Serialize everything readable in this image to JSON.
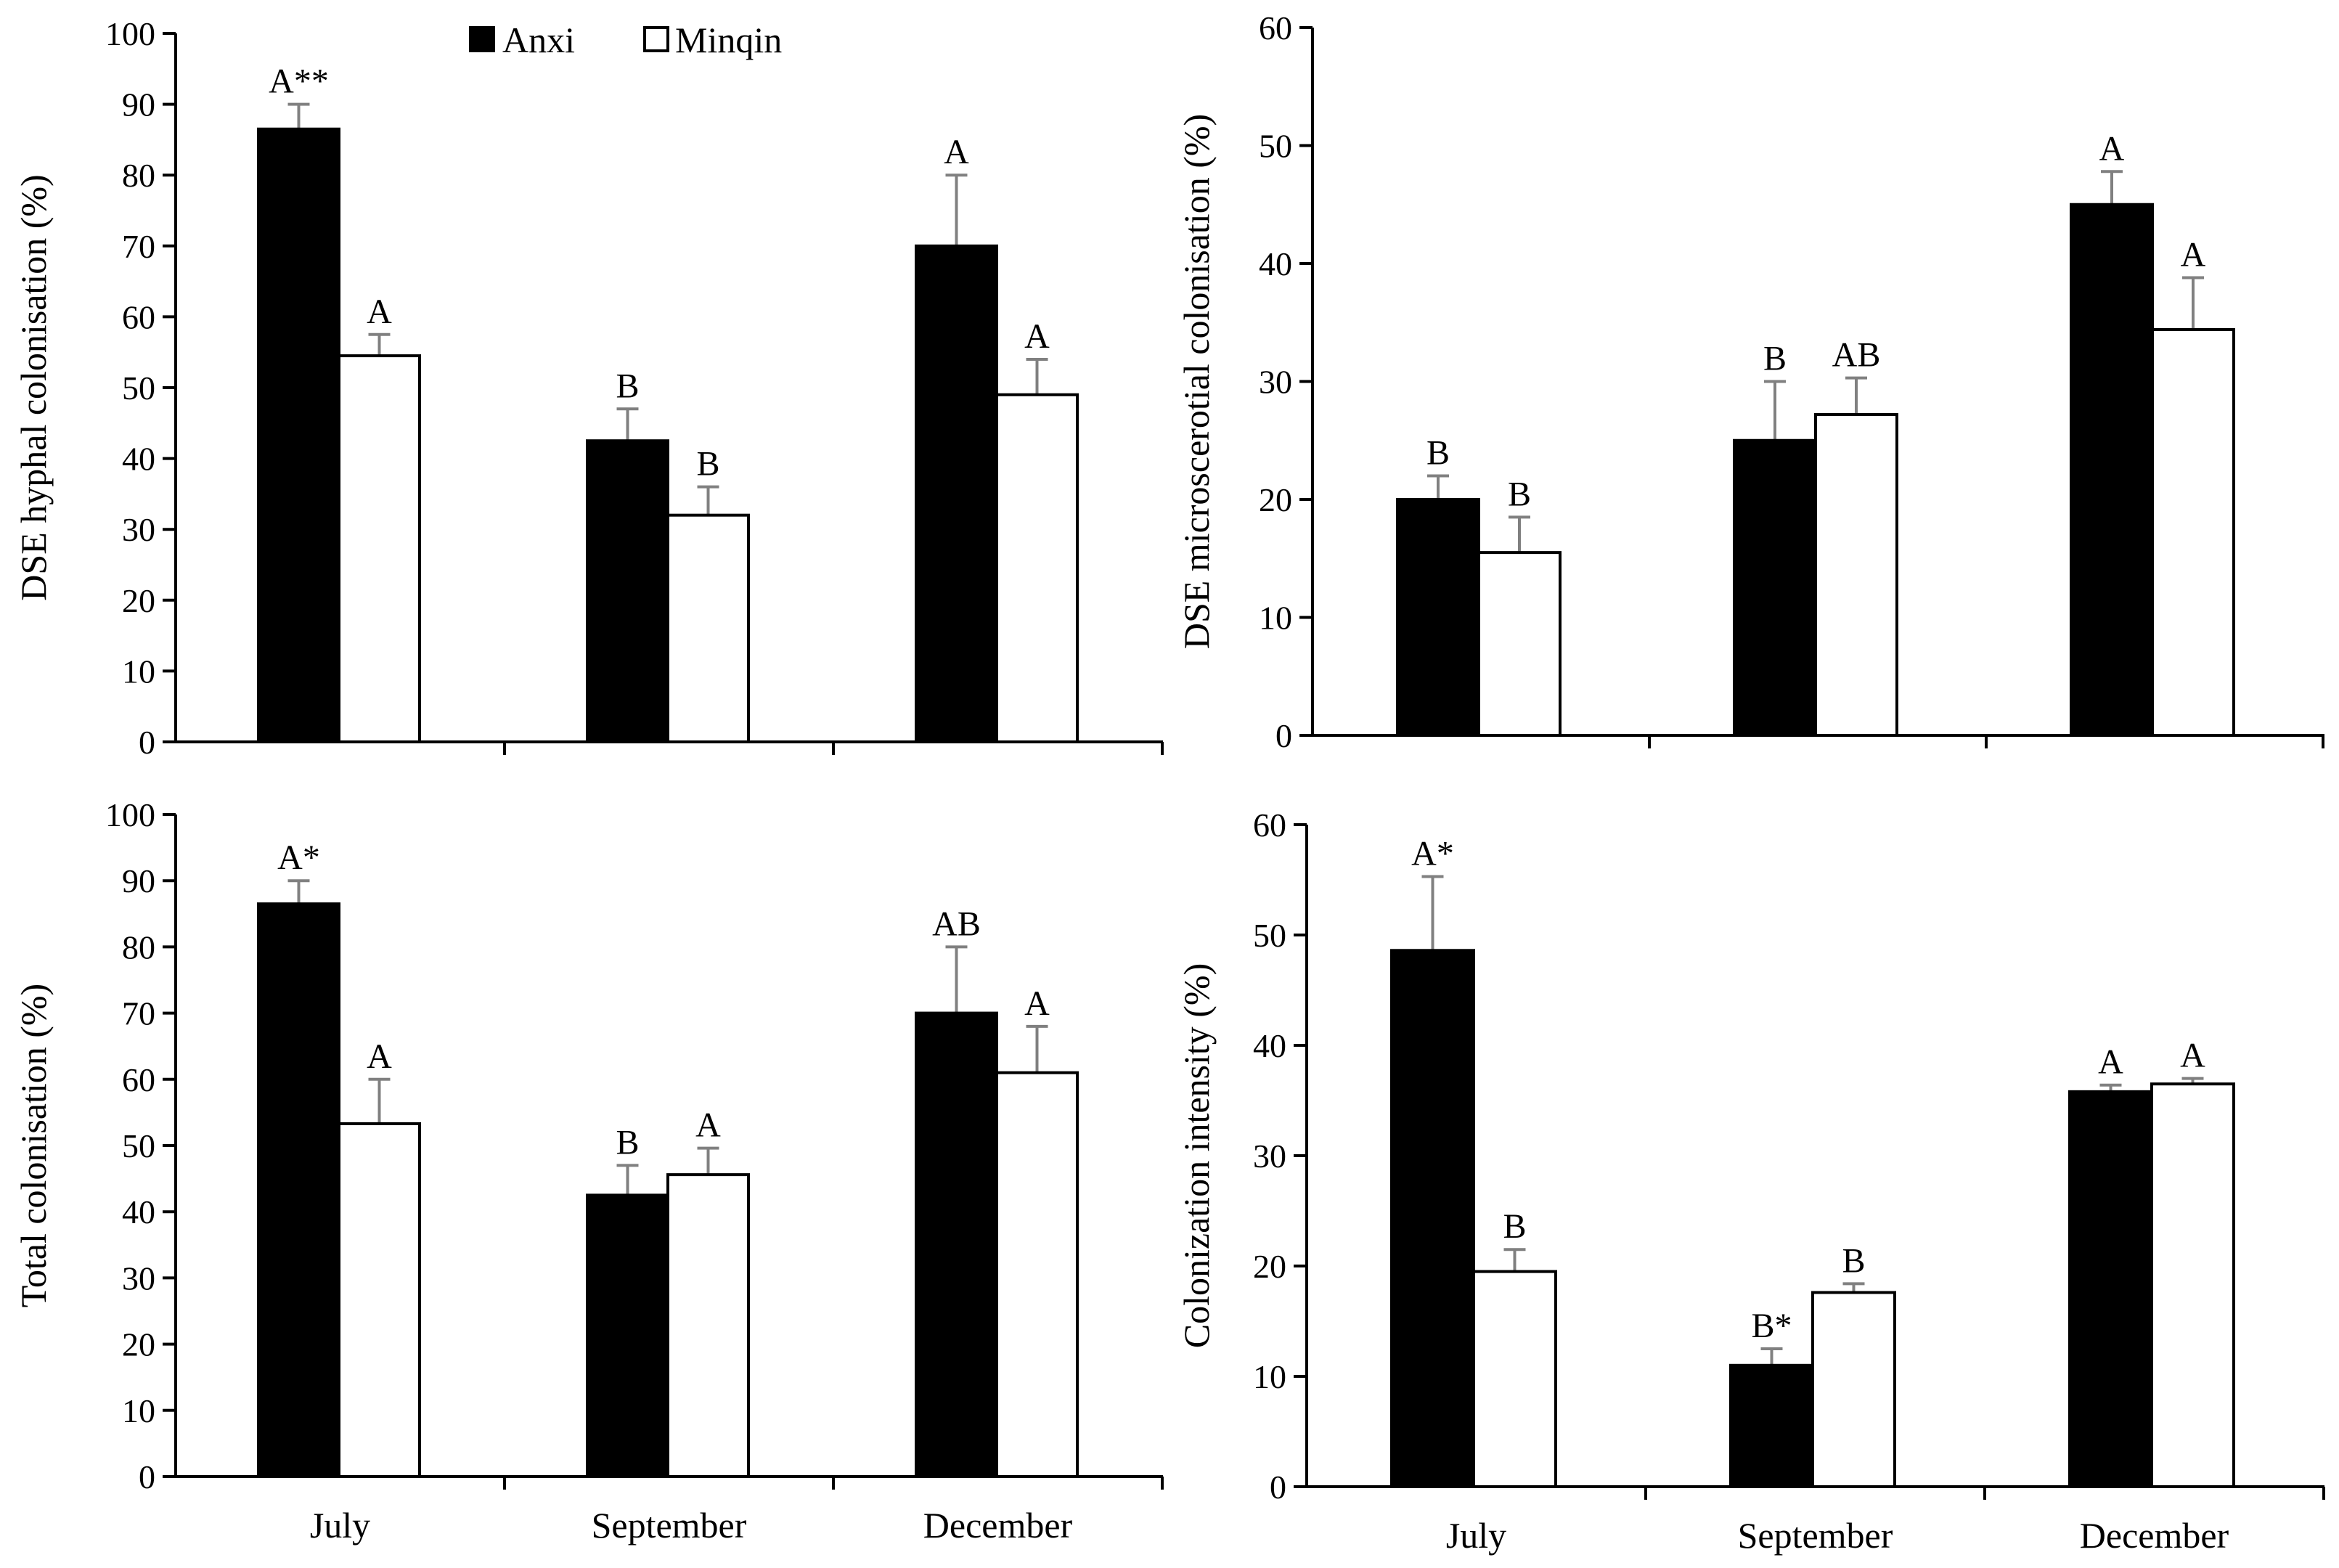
{
  "legend": {
    "series": [
      {
        "name": "Anxi",
        "color": "#000000"
      },
      {
        "name": "Minqin",
        "color": "#ffffff"
      }
    ]
  },
  "colors": {
    "axis": "#000000",
    "error_bar": "#808080",
    "bar_outline": "#000000"
  },
  "chart_data": [
    {
      "id": "hyphal",
      "type": "bar",
      "ylabel": "DSE hyphal colonisation (%)",
      "ylim": [
        0,
        100
      ],
      "yticks": [
        0,
        10,
        20,
        30,
        40,
        50,
        60,
        70,
        80,
        90,
        100
      ],
      "categories": [
        "July",
        "September",
        "December"
      ],
      "show_category_labels": false,
      "legend_position": "top",
      "series": [
        {
          "name": "Anxi",
          "values": [
            86.5,
            42.5,
            70
          ],
          "errors": [
            3.5,
            4.5,
            10
          ],
          "labels": [
            "A**",
            "B",
            "A"
          ]
        },
        {
          "name": "Minqin",
          "values": [
            54.5,
            32,
            49
          ],
          "errors": [
            3,
            4,
            5
          ],
          "labels": [
            "A",
            "B",
            "A"
          ]
        }
      ]
    },
    {
      "id": "microsclerotial",
      "type": "bar",
      "ylabel": "DSE microscerotial colonisation (%)",
      "ylim": [
        0,
        60
      ],
      "yticks": [
        0,
        10,
        20,
        30,
        40,
        50,
        60
      ],
      "categories": [
        "July",
        "September",
        "December"
      ],
      "show_category_labels": false,
      "series": [
        {
          "name": "Anxi",
          "values": [
            20,
            25,
            45
          ],
          "errors": [
            2,
            5,
            2.8
          ],
          "labels": [
            "B",
            "B",
            "A"
          ]
        },
        {
          "name": "Minqin",
          "values": [
            15.5,
            27.2,
            34.4
          ],
          "errors": [
            3,
            3.1,
            4.4
          ],
          "labels": [
            "B",
            "AB",
            "A"
          ]
        }
      ]
    },
    {
      "id": "total",
      "type": "bar",
      "ylabel": "Total colonisation (%)",
      "ylim": [
        0,
        100
      ],
      "yticks": [
        0,
        10,
        20,
        30,
        40,
        50,
        60,
        70,
        80,
        90,
        100
      ],
      "categories": [
        "July",
        "September",
        "December"
      ],
      "show_category_labels": true,
      "series": [
        {
          "name": "Anxi",
          "values": [
            86.5,
            42.5,
            70
          ],
          "errors": [
            3.5,
            4.5,
            10
          ],
          "labels": [
            "A*",
            "B",
            "AB"
          ]
        },
        {
          "name": "Minqin",
          "values": [
            53.3,
            45.6,
            61
          ],
          "errors": [
            6.7,
            4,
            7
          ],
          "labels": [
            "A",
            "A",
            "A"
          ]
        }
      ]
    },
    {
      "id": "intensity",
      "type": "bar",
      "ylabel": "Colonization  intensity (%)",
      "ylim": [
        0,
        60
      ],
      "yticks": [
        0,
        10,
        20,
        30,
        40,
        50,
        60
      ],
      "categories": [
        "July",
        "September",
        "December"
      ],
      "show_category_labels": true,
      "series": [
        {
          "name": "Anxi",
          "values": [
            48.6,
            11,
            35.8
          ],
          "errors": [
            6.7,
            1.5,
            0.6
          ],
          "labels": [
            "A*",
            "B*",
            "A"
          ]
        },
        {
          "name": "Minqin",
          "values": [
            19.5,
            17.6,
            36.5
          ],
          "errors": [
            2,
            0.8,
            0.5
          ],
          "labels": [
            "B",
            "B",
            "A"
          ]
        }
      ]
    }
  ]
}
